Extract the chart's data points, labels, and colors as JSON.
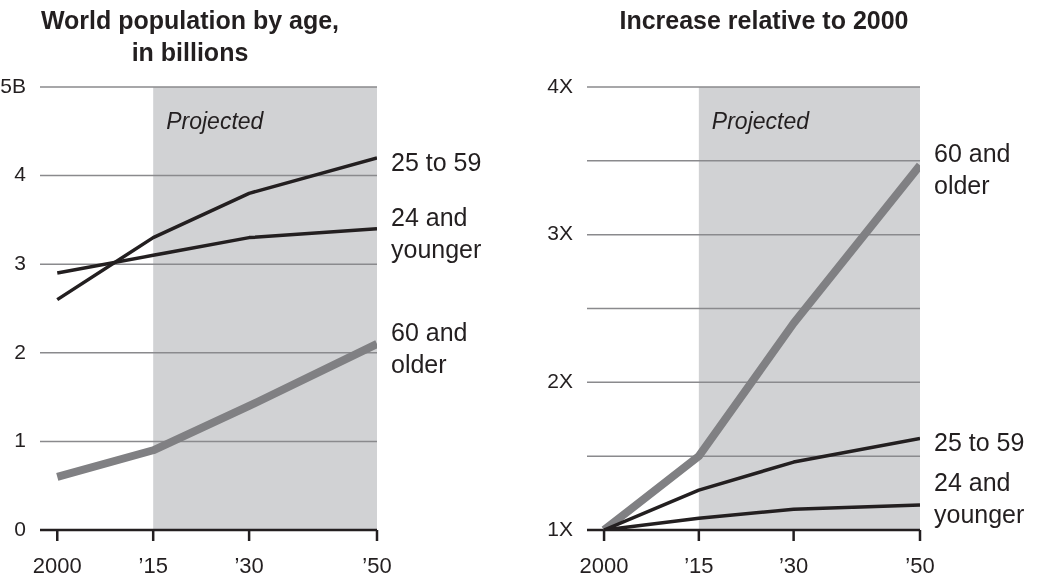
{
  "chart_data": [
    {
      "type": "line",
      "title": "World population by age, in billions",
      "x": [
        2000,
        2015,
        2030,
        2050
      ],
      "xlim": [
        1997.3,
        2050
      ],
      "xticks": [
        {
          "value": 2000,
          "label": "2000"
        },
        {
          "value": 2015,
          "label": "’15"
        },
        {
          "value": 2030,
          "label": "’30"
        },
        {
          "value": 2050,
          "label": "’50"
        }
      ],
      "ylim": [
        0,
        5
      ],
      "yticks": [
        0,
        1,
        2,
        3,
        4,
        {
          "value": 5,
          "label": "5B"
        }
      ],
      "series": [
        {
          "name": "25 to 59",
          "color": "#231f20",
          "values": [
            2.6,
            3.3,
            3.8,
            4.2
          ]
        },
        {
          "name": "24 and younger",
          "color": "#231f20",
          "values": [
            2.9,
            3.1,
            3.3,
            3.4
          ]
        },
        {
          "name": "60 and older",
          "color": "#808083",
          "values": [
            0.6,
            0.9,
            1.4,
            2.1
          ]
        }
      ],
      "bands": [
        {
          "axis": "x",
          "from": 2015,
          "to": 2050,
          "label": "Projected",
          "color": "#d1d2d4"
        }
      ],
      "grid": "y",
      "legend": false
    },
    {
      "type": "line",
      "title": "Increase relative to 2000",
      "x": [
        2000,
        2015,
        2030,
        2050
      ],
      "xlim": [
        1997.3,
        2050
      ],
      "xticks": [
        {
          "value": 2000,
          "label": "2000"
        },
        {
          "value": 2015,
          "label": "’15"
        },
        {
          "value": 2030,
          "label": "’30"
        },
        {
          "value": 2050,
          "label": "’50"
        }
      ],
      "ylim": [
        1,
        4
      ],
      "yticks": [
        {
          "value": 1,
          "label": "1X"
        },
        {
          "value": 1.5,
          "label": null
        },
        {
          "value": 2,
          "label": "2X"
        },
        {
          "value": 2.5,
          "label": null
        },
        {
          "value": 3,
          "label": "3X"
        },
        {
          "value": 3.5,
          "label": null
        },
        {
          "value": 4,
          "label": "4X"
        }
      ],
      "series": [
        {
          "name": "60 and older",
          "color": "#808083",
          "values": [
            1,
            1.5,
            2.4,
            3.47
          ]
        },
        {
          "name": "25 to 59",
          "color": "#231f20",
          "values": [
            1,
            1.27,
            1.46,
            1.62
          ]
        },
        {
          "name": "24 and younger",
          "color": "#231f20",
          "values": [
            1,
            1.08,
            1.14,
            1.17
          ]
        }
      ],
      "bands": [
        {
          "axis": "x",
          "from": 2015,
          "to": 2050,
          "label": "Projected",
          "color": "#d1d2d4"
        }
      ],
      "grid": "y",
      "legend": false
    }
  ]
}
